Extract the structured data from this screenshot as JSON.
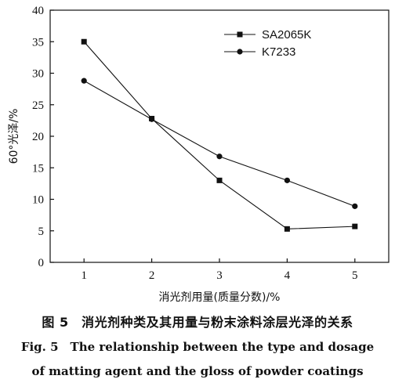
{
  "chart_data": {
    "type": "line",
    "xlabel": "消光剂用量(质量分数)/%",
    "ylabel": "60°光泽/%",
    "x": [
      1,
      2,
      3,
      4,
      5
    ],
    "xticks": [
      "1",
      "2",
      "3",
      "4",
      "5"
    ],
    "xlim": [
      0.5,
      5.5
    ],
    "yticks": [
      "0",
      "5",
      "10",
      "15",
      "20",
      "25",
      "30",
      "35",
      "40"
    ],
    "ylim": [
      0,
      40
    ],
    "grid": false,
    "legend_position": "top-right",
    "series": [
      {
        "name": "SA2065K",
        "marker": "square",
        "values": [
          35.0,
          22.8,
          13.0,
          5.3,
          5.7
        ]
      },
      {
        "name": "K7233",
        "marker": "circle",
        "values": [
          28.8,
          22.7,
          16.8,
          13.0,
          8.9
        ]
      }
    ]
  },
  "caption": {
    "cn": "图 5　消光剂种类及其用量与粉末涂料涂层光泽的关系",
    "en_line1": "Fig. 5　The relationship between the type and dosage",
    "en_line2": "of matting agent and the gloss of powder coatings"
  }
}
